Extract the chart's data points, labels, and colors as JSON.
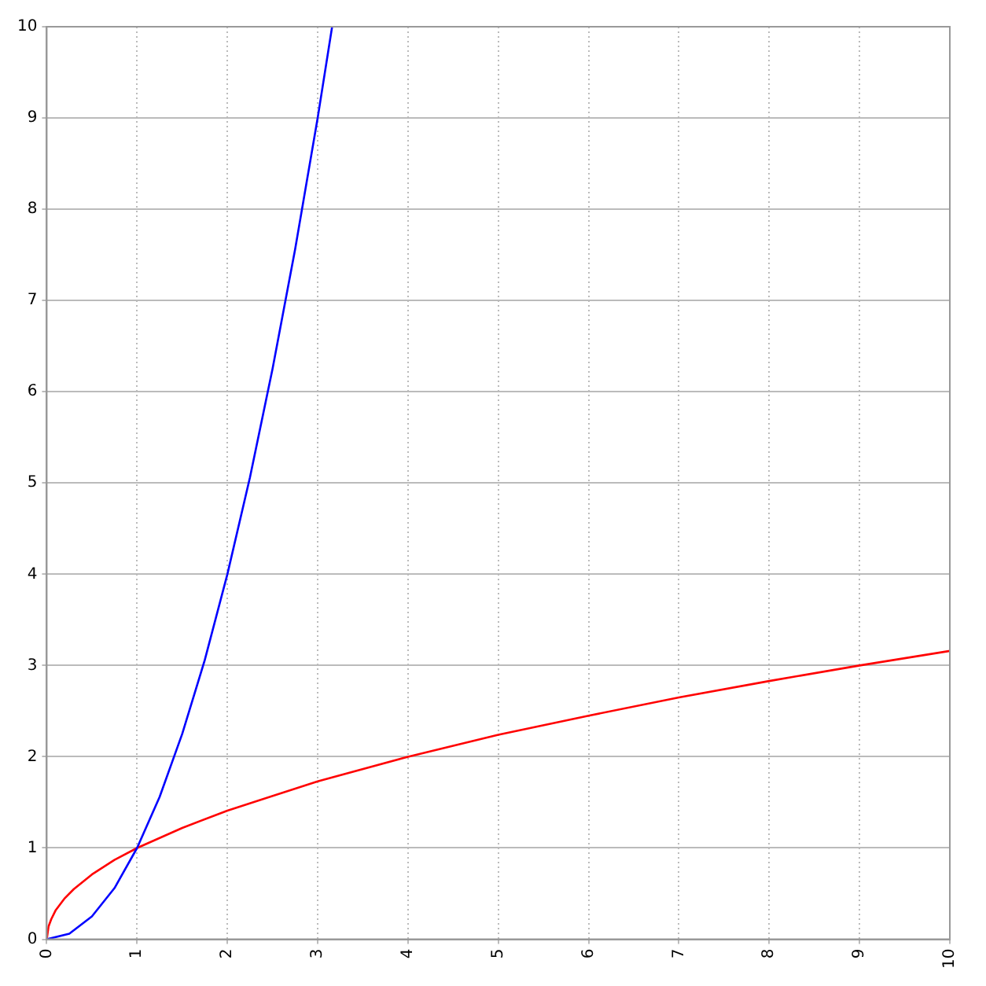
{
  "chart_data": {
    "type": "line",
    "xlim": [
      0,
      10
    ],
    "ylim": [
      0,
      10
    ],
    "xticks": [
      0,
      1,
      2,
      3,
      4,
      5,
      6,
      7,
      8,
      9,
      10
    ],
    "yticks": [
      0,
      1,
      2,
      3,
      4,
      5,
      6,
      7,
      8,
      9,
      10
    ],
    "grid": true,
    "marker": "none",
    "line_style": "solid",
    "series": [
      {
        "color": "#0000ff",
        "x": [
          0,
          0.25,
          0.5,
          0.75,
          1,
          1.25,
          1.5,
          1.75,
          2,
          2.25,
          2.5,
          2.75,
          3,
          3.16
        ],
        "values": [
          0,
          0.06,
          0.25,
          0.56,
          1,
          1.56,
          2.25,
          3.06,
          4,
          5.06,
          6.25,
          7.56,
          9,
          10
        ]
      },
      {
        "color": "#ff0000",
        "x": [
          0,
          0.02,
          0.05,
          0.1,
          0.2,
          0.3,
          0.5,
          0.75,
          1,
          1.5,
          2,
          3,
          4,
          5,
          6,
          7,
          8,
          9,
          10
        ],
        "values": [
          0,
          0.14,
          0.22,
          0.32,
          0.45,
          0.55,
          0.71,
          0.87,
          1,
          1.22,
          1.41,
          1.73,
          2,
          2.24,
          2.45,
          2.65,
          2.83,
          3,
          3.16
        ]
      }
    ]
  }
}
